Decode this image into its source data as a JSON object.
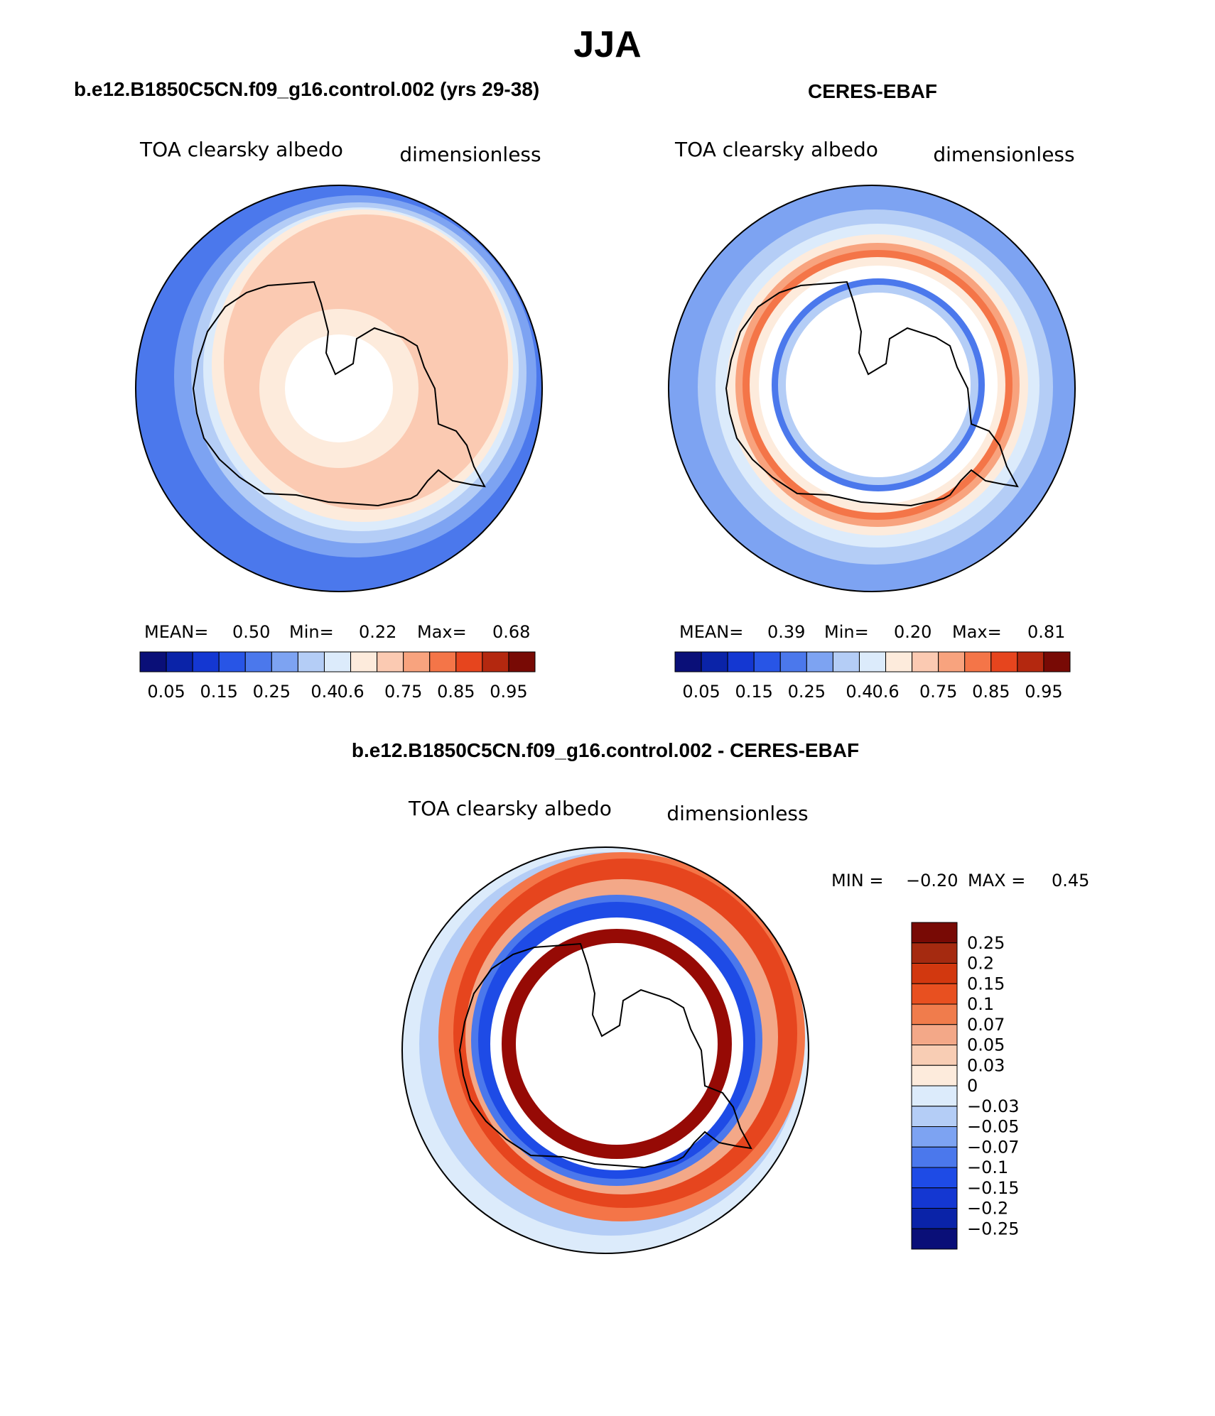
{
  "page_title": "JJA",
  "panels": {
    "model": {
      "title": "b.e12.B1850C5CN.f09_g16.control.002 (yrs 29-38)",
      "variable": "TOA clearsky albedo",
      "units": "dimensionless",
      "stats": {
        "mean_label": "MEAN=",
        "mean": "0.50",
        "min_label": "Min=",
        "min": "0.22",
        "max_label": "Max=",
        "max": "0.68"
      }
    },
    "obs": {
      "title": "CERES-EBAF",
      "variable": "TOA clearsky albedo",
      "units": "dimensionless",
      "stats": {
        "mean_label": "MEAN=",
        "mean": "0.39",
        "min_label": "Min=",
        "min": "0.20",
        "max_label": "Max=",
        "max": "0.81"
      }
    },
    "diff": {
      "title": "b.e12.B1850C5CN.f09_g16.control.002 - CERES-EBAF",
      "variable": "TOA clearsky albedo",
      "units": "dimensionless",
      "stats": {
        "min_label": "MIN =",
        "min": "−0.20",
        "max_label": "MAX =",
        "max": "0.45"
      }
    }
  },
  "colorbars": {
    "abs": {
      "colors": [
        "#0a0f78",
        "#0a23a8",
        "#1437d2",
        "#2855e6",
        "#4b78ec",
        "#7da3f2",
        "#b4cdf6",
        "#dcebfb",
        "#fdebdc",
        "#fbcab2",
        "#f8a37e",
        "#f47548",
        "#e6451e",
        "#b4280f",
        "#780a05"
      ],
      "tick_labels": [
        "0.05",
        "0.15",
        "0.25",
        "0.4",
        "0.6",
        "0.75",
        "0.85",
        "0.95"
      ]
    },
    "diff": {
      "colors": [
        "#780a05",
        "#a52a10",
        "#d2380f",
        "#e85020",
        "#f07c4c",
        "#f3a888",
        "#f8cdb4",
        "#fdebdc",
        "#dcebfb",
        "#b4cdf6",
        "#7da3f2",
        "#4b78ec",
        "#1e4be6",
        "#1437d2",
        "#0a23a8",
        "#0a0f78"
      ],
      "tick_labels": [
        "0.25",
        "0.2",
        "0.15",
        "0.1",
        "0.07",
        "0.05",
        "0.03",
        "0",
        "−0.03",
        "−0.05",
        "−0.07",
        "−0.1",
        "−0.15",
        "−0.2",
        "−0.25"
      ]
    }
  },
  "map_colors": {
    "coast": "#000000",
    "model": {
      "outer": "#4b78ec",
      "band2": "#7da3f2",
      "band3": "#b4cdf6",
      "band4": "#dcebfb",
      "edge": "#fdebdc",
      "interior": "#fbcab2",
      "ring_in": "#fdebdc",
      "pole": "#ffffff"
    },
    "obs": {
      "outer": "#7da3f2",
      "mid": "#b4cdf6",
      "light": "#dcebfb",
      "peach": "#fdebdc",
      "salmon": "#f8a37e",
      "orange": "#f47548",
      "blueRing": "#4b78ec",
      "inner": "#ffffff"
    },
    "diff": {
      "pale": "#dcebfb",
      "light": "#b4cdf6",
      "blue": "#4b78ec",
      "deepBlue": "#1e4be6",
      "orange": "#f47548",
      "red": "#e6451e",
      "salmon": "#f3a888",
      "darkRed": "#960a05",
      "inner": "#ffffff"
    }
  }
}
